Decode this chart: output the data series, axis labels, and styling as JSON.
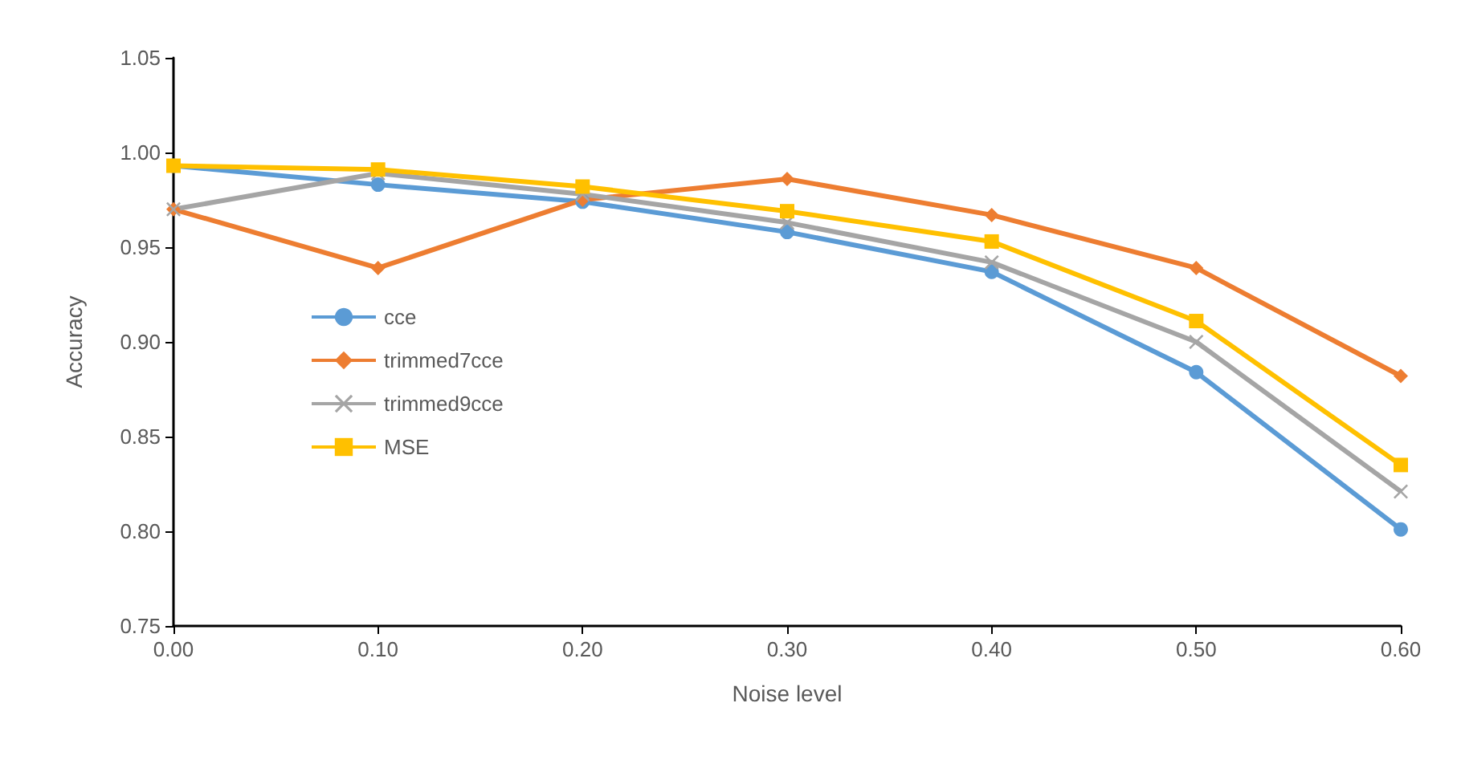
{
  "chart_data": {
    "type": "line",
    "xlabel": "Noise level",
    "ylabel": "Accuracy",
    "x": [
      0,
      0.1,
      0.2,
      0.3,
      0.4,
      0.5,
      0.6
    ],
    "xlim": [
      0,
      0.6
    ],
    "xticks": [
      {
        "value": 0,
        "label": "0.00"
      },
      {
        "value": 0.1,
        "label": "0.10"
      },
      {
        "value": 0.2,
        "label": "0.20"
      },
      {
        "value": 0.3,
        "label": "0.30"
      },
      {
        "value": 0.4,
        "label": "0.40"
      },
      {
        "value": 0.5,
        "label": "0.50"
      },
      {
        "value": 0.6,
        "label": "0.60"
      }
    ],
    "ylim": [
      0.75,
      1.05
    ],
    "yticks": [
      {
        "value": 0.75,
        "label": "0.75"
      },
      {
        "value": 0.8,
        "label": "0.80"
      },
      {
        "value": 0.85,
        "label": "0.85"
      },
      {
        "value": 0.9,
        "label": "0.90"
      },
      {
        "value": 0.95,
        "label": "0.95"
      },
      {
        "value": 1,
        "label": "1.00"
      },
      {
        "value": 1.05,
        "label": "1.05"
      }
    ],
    "grid": false,
    "legend": "left",
    "series": [
      {
        "name": "cce",
        "color": "#5b9bd5",
        "marker": "circle",
        "values": [
          0.993,
          0.983,
          0.974,
          0.958,
          0.937,
          0.884,
          0.801
        ]
      },
      {
        "name": "trimmed7cce",
        "color": "#ed7d31",
        "marker": "diamond",
        "values": [
          0.97,
          0.939,
          0.975,
          0.986,
          0.967,
          0.939,
          0.882
        ]
      },
      {
        "name": "trimmed9cce",
        "color": "#a5a5a5",
        "marker": "cross",
        "values": [
          0.97,
          0.989,
          0.978,
          0.963,
          0.942,
          0.9,
          0.821
        ]
      },
      {
        "name": "MSE",
        "color": "#ffc000",
        "marker": "square",
        "values": [
          0.993,
          0.991,
          0.982,
          0.969,
          0.953,
          0.911,
          0.835
        ]
      }
    ]
  }
}
